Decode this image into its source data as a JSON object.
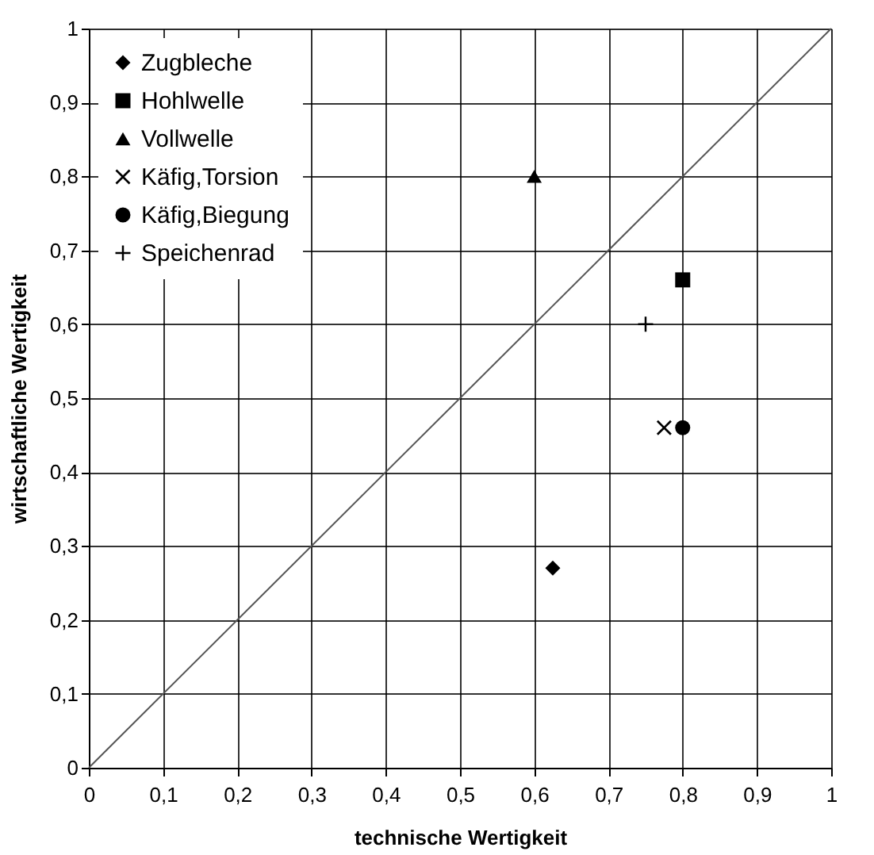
{
  "chart_data": {
    "type": "scatter",
    "xlabel": "technische Wertigkeit",
    "ylabel": "wirtschaftliche Wertigkeit",
    "xlim": [
      0,
      1
    ],
    "ylim": [
      0,
      1
    ],
    "xticks": [
      0,
      {
        "value": 0.1,
        "label": "0,1"
      },
      {
        "value": 0.2,
        "label": "0,2"
      },
      {
        "value": 0.3,
        "label": "0,3"
      },
      {
        "value": 0.4,
        "label": "0,4"
      },
      {
        "value": 0.5,
        "label": "0,5"
      },
      {
        "value": 0.6,
        "label": "0,6"
      },
      {
        "value": 0.7,
        "label": "0,7"
      },
      {
        "value": 0.8,
        "label": "0,8"
      },
      {
        "value": 0.9,
        "label": "0,9"
      },
      1
    ],
    "yticks": [
      0,
      {
        "value": 0.1,
        "label": "0,1"
      },
      {
        "value": 0.2,
        "label": "0,2"
      },
      {
        "value": 0.3,
        "label": "0,3"
      },
      {
        "value": 0.4,
        "label": "0,4"
      },
      {
        "value": 0.5,
        "label": "0,5"
      },
      {
        "value": 0.6,
        "label": "0,6"
      },
      {
        "value": 0.7,
        "label": "0,7"
      },
      {
        "value": 0.8,
        "label": "0,8"
      },
      {
        "value": 0.9,
        "label": "0,9"
      },
      1
    ],
    "grid": true,
    "legend": "top left",
    "series": [
      {
        "name": "Zugbleche",
        "color": "#000000",
        "marker": "diamond",
        "x": [
          0.625
        ],
        "values": [
          0.27
        ]
      },
      {
        "name": "Hohlwelle",
        "color": "#000000",
        "marker": "square",
        "x": [
          0.8
        ],
        "values": [
          0.66
        ]
      },
      {
        "name": "Vollwelle",
        "color": "#000000",
        "marker": "triangle",
        "x": [
          0.6
        ],
        "values": [
          0.8
        ]
      },
      {
        "name": "Käfig,Torsion",
        "color": "#000000",
        "marker": "cross",
        "x": [
          0.775
        ],
        "values": [
          0.46
        ]
      },
      {
        "name": "Käfig,Biegung",
        "color": "#000000",
        "marker": "circle",
        "x": [
          0.8
        ],
        "values": [
          0.46
        ]
      },
      {
        "name": "Speichenrad",
        "color": "#000000",
        "marker": "plus",
        "x": [
          0.75
        ],
        "values": [
          0.6
        ]
      },
      {
        "type": "line",
        "color": "#555555",
        "line_style": "solid",
        "x": [
          0,
          1
        ],
        "values": [
          0,
          1
        ]
      }
    ]
  }
}
